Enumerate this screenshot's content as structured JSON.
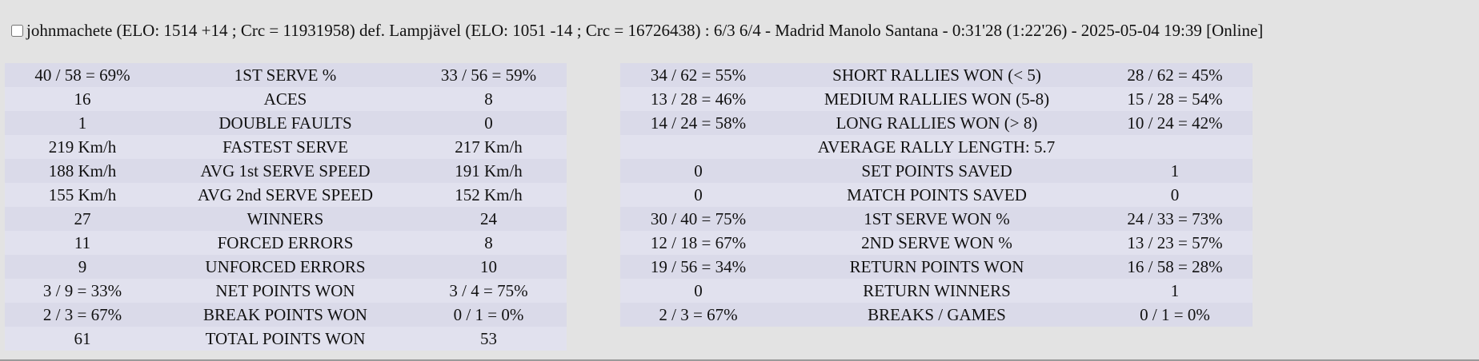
{
  "header": {
    "text": "johnmachete (ELO: 1514 +14 ; Crc = 11931958) def. Lampjävel (ELO: 1051 -14 ; Crc = 16726438) : 6/3 6/4 - Madrid Manolo Santana - 0:31'28 (1:22'26) - 2025-05-04 19:39 [Online]"
  },
  "left_table": {
    "rows": [
      [
        "40 / 58 = 69%",
        "1ST SERVE %",
        "33 / 56 = 59%"
      ],
      [
        "16",
        "ACES",
        "8"
      ],
      [
        "1",
        "DOUBLE FAULTS",
        "0"
      ],
      [
        "219 Km/h",
        "FASTEST SERVE",
        "217 Km/h"
      ],
      [
        "188 Km/h",
        "AVG 1st SERVE SPEED",
        "191 Km/h"
      ],
      [
        "155 Km/h",
        "AVG 2nd SERVE SPEED",
        "152 Km/h"
      ],
      [
        "27",
        "WINNERS",
        "24"
      ],
      [
        "11",
        "FORCED ERRORS",
        "8"
      ],
      [
        "9",
        "UNFORCED ERRORS",
        "10"
      ],
      [
        "3 / 9 = 33%",
        "NET POINTS WON",
        "3 / 4 = 75%"
      ],
      [
        "2 / 3 = 67%",
        "BREAK POINTS WON",
        "0 / 1 = 0%"
      ],
      [
        "61",
        "TOTAL POINTS WON",
        "53"
      ]
    ]
  },
  "right_table": {
    "rows": [
      [
        "34 / 62 = 55%",
        "SHORT RALLIES WON (< 5)",
        "28 / 62 = 45%"
      ],
      [
        "13 / 28 = 46%",
        "MEDIUM RALLIES WON (5-8)",
        "15 / 28 = 54%"
      ],
      [
        "14 / 24 = 58%",
        "LONG RALLIES WON (> 8)",
        "10 / 24 = 42%"
      ],
      [
        "AVERAGE RALLY LENGTH: 5.7"
      ],
      [
        "0",
        "SET POINTS SAVED",
        "1"
      ],
      [
        "0",
        "MATCH POINTS SAVED",
        "0"
      ],
      [
        "30 / 40 = 75%",
        "1ST SERVE WON %",
        "24 / 33 = 73%"
      ],
      [
        "12 / 18 = 67%",
        "2ND SERVE WON %",
        "13 / 23 = 57%"
      ],
      [
        "19 / 56 = 34%",
        "RETURN POINTS WON",
        "16 / 58 = 28%"
      ],
      [
        "0",
        "RETURN WINNERS",
        "1"
      ],
      [
        "2 / 3 = 67%",
        "BREAKS / GAMES",
        "0 / 1 = 0%"
      ]
    ]
  }
}
